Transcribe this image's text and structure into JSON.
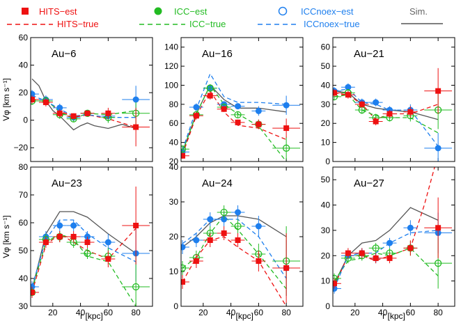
{
  "colors": {
    "hits": "#ee1111",
    "icc": "#22bb22",
    "iccnoex": "#1e7fee",
    "sim": "#555555"
  },
  "legend": [
    {
      "label": "HITS−est",
      "series": "hits",
      "kind": "marker",
      "marker": "square"
    },
    {
      "label": "HITS−true",
      "series": "hits",
      "kind": "dashed"
    },
    {
      "label": "ICC−est",
      "series": "icc",
      "kind": "marker",
      "marker": "filled-circle"
    },
    {
      "label": "ICC−true",
      "series": "icc",
      "kind": "dashed"
    },
    {
      "label": "ICCnoex−est",
      "series": "iccnoex",
      "kind": "marker",
      "marker": "open-circle"
    },
    {
      "label": "ICCnoex−true",
      "series": "iccnoex",
      "kind": "dashed"
    },
    {
      "label": "Sim.",
      "series": "sim",
      "kind": "solid"
    }
  ],
  "chart_data": [
    {
      "type": "line",
      "title": "Au−6",
      "xlim": [
        4,
        92
      ],
      "ylim": [
        -30,
        60
      ],
      "yticks": [
        -20,
        0,
        20,
        40,
        60
      ],
      "xticks": [
        20,
        40,
        60,
        80
      ],
      "ylabel": "Vφ [km s⁻¹]",
      "xlabel": "",
      "sim": {
        "x": [
          5,
          10,
          15,
          20,
          25,
          30,
          35,
          40,
          45,
          50,
          60,
          70,
          80
        ],
        "y": [
          30,
          25,
          14,
          7,
          3,
          -2,
          -7,
          -4,
          -2,
          -4,
          -6,
          -3,
          -6
        ]
      },
      "hits_true": {
        "x": [
          5,
          15,
          25,
          35,
          45,
          60,
          80
        ],
        "y": [
          14,
          14,
          7,
          2,
          4,
          1,
          -5
        ]
      },
      "icc_true": {
        "x": [
          5,
          15,
          25,
          35,
          45,
          60,
          80
        ],
        "y": [
          15,
          15,
          6,
          1,
          5,
          4,
          7
        ]
      },
      "iccnoex_true": {
        "x": [
          5,
          15,
          25,
          35,
          45,
          60,
          80
        ],
        "y": [
          18,
          14,
          8,
          3,
          4,
          2,
          2
        ]
      },
      "hits_est": {
        "x": [
          5,
          15,
          25,
          35,
          45,
          60,
          80
        ],
        "y": [
          15,
          13,
          5,
          3,
          5,
          5,
          -5
        ],
        "err": [
          3,
          3,
          3,
          2,
          2,
          4,
          14
        ]
      },
      "icc_est": {
        "x": [
          5,
          15,
          25,
          35,
          45,
          60,
          80
        ],
        "y": [
          14,
          14,
          4,
          1,
          5,
          2,
          5
        ],
        "err": [
          3,
          3,
          3,
          2,
          2,
          4,
          8
        ]
      },
      "iccnoex_est": {
        "x": [
          5,
          15,
          25,
          35,
          45,
          60,
          80
        ],
        "y": [
          19,
          15,
          9,
          2,
          5,
          3,
          15
        ],
        "err": [
          3,
          3,
          3,
          2,
          2,
          4,
          10
        ]
      }
    },
    {
      "type": "line",
      "title": "Au−16",
      "xlim": [
        4,
        92
      ],
      "ylim": [
        20,
        150
      ],
      "yticks": [
        20,
        40,
        60,
        80,
        100,
        120,
        140
      ],
      "xticks": [
        20,
        40,
        60,
        80
      ],
      "ylabel": "",
      "xlabel": "",
      "sim": {
        "x": [
          5,
          15,
          25,
          35,
          45,
          60,
          80
        ],
        "y": [
          30,
          70,
          100,
          85,
          76,
          76,
          72
        ]
      },
      "hits_true": {
        "x": [
          5,
          15,
          25,
          35,
          45,
          60,
          80
        ],
        "y": [
          27,
          68,
          94,
          72,
          58,
          55,
          43
        ]
      },
      "icc_true": {
        "x": [
          5,
          15,
          25,
          35,
          45,
          60,
          80
        ],
        "y": [
          30,
          70,
          100,
          80,
          70,
          57,
          20
        ]
      },
      "iccnoex_true": {
        "x": [
          5,
          15,
          25,
          35,
          45,
          60,
          80
        ],
        "y": [
          32,
          75,
          112,
          88,
          82,
          82,
          80
        ]
      },
      "hits_est": {
        "x": [
          5,
          15,
          25,
          35,
          45,
          60,
          80
        ],
        "y": [
          26,
          68,
          89,
          75,
          61,
          59,
          55
        ],
        "err": [
          3,
          4,
          4,
          3,
          3,
          5,
          10
        ]
      },
      "icc_est": {
        "x": [
          5,
          15,
          25,
          35,
          45,
          60,
          80
        ],
        "y": [
          33,
          69,
          97,
          77,
          69,
          59,
          34
        ],
        "err": [
          3,
          4,
          4,
          3,
          3,
          5,
          12
        ]
      },
      "iccnoex_est": {
        "x": [
          5,
          15,
          25,
          35,
          45,
          60,
          80
        ],
        "y": [
          30,
          77,
          97,
          80,
          78,
          73,
          79
        ],
        "err": [
          3,
          4,
          4,
          3,
          3,
          5,
          10
        ]
      }
    },
    {
      "type": "line",
      "title": "Au−21",
      "xlim": [
        4,
        92
      ],
      "ylim": [
        0,
        65
      ],
      "yticks": [
        0,
        10,
        20,
        30,
        40,
        50,
        60
      ],
      "xticks": [
        20,
        40,
        60,
        80
      ],
      "ylabel": "",
      "xlabel": "",
      "sim": {
        "x": [
          5,
          15,
          25,
          35,
          45,
          60,
          80
        ],
        "y": [
          37,
          36,
          30,
          28,
          27,
          26,
          22
        ]
      },
      "hits_true": {
        "x": [
          5,
          15,
          25,
          35,
          45,
          60,
          80
        ],
        "y": [
          36,
          35,
          30,
          22,
          25,
          25,
          30
        ]
      },
      "icc_true": {
        "x": [
          5,
          15,
          25,
          35,
          45,
          60,
          80
        ],
        "y": [
          34,
          35,
          27,
          24,
          23,
          23,
          15
        ]
      },
      "iccnoex_true": {
        "x": [
          5,
          15,
          25,
          35,
          45,
          60,
          80
        ],
        "y": [
          37,
          38,
          31,
          30,
          27,
          27,
          8
        ]
      },
      "hits_est": {
        "x": [
          5,
          15,
          25,
          35,
          45,
          60,
          80
        ],
        "y": [
          36,
          35,
          30,
          21,
          25,
          26,
          37
        ],
        "err": [
          2,
          2,
          2,
          2,
          2,
          3,
          12
        ]
      },
      "icc_est": {
        "x": [
          5,
          15,
          25,
          35,
          45,
          60,
          80
        ],
        "y": [
          34,
          36,
          27,
          23,
          23,
          24,
          27
        ],
        "err": [
          2,
          2,
          2,
          2,
          2,
          3,
          10
        ]
      },
      "iccnoex_est": {
        "x": [
          5,
          15,
          25,
          35,
          45,
          60,
          80
        ],
        "y": [
          37,
          39,
          31,
          31,
          27,
          27,
          7
        ],
        "err": [
          2,
          2,
          2,
          2,
          2,
          3,
          8
        ]
      }
    },
    {
      "type": "line",
      "title": "Au−23",
      "xlim": [
        4,
        92
      ],
      "ylim": [
        30,
        80
      ],
      "yticks": [
        30,
        40,
        50,
        60,
        70,
        80
      ],
      "xticks": [
        20,
        40,
        60,
        80
      ],
      "ylabel": "Vφ [km s⁻¹]",
      "xlabel": "r [kpc]",
      "sim": {
        "x": [
          5,
          15,
          25,
          35,
          45,
          60,
          80
        ],
        "y": [
          36,
          56,
          64,
          64,
          62,
          56,
          49
        ]
      },
      "hits_true": {
        "x": [
          5,
          15,
          25,
          35,
          45,
          60,
          80
        ],
        "y": [
          35,
          52,
          56,
          53,
          50,
          47,
          58
        ]
      },
      "icc_true": {
        "x": [
          5,
          15,
          25,
          35,
          45,
          60,
          80
        ],
        "y": [
          36,
          53,
          56,
          54,
          48,
          46,
          30
        ]
      },
      "iccnoex_true": {
        "x": [
          5,
          15,
          25,
          35,
          45,
          60,
          80
        ],
        "y": [
          37,
          54,
          61,
          61,
          56,
          51,
          46
        ]
      },
      "hits_est": {
        "x": [
          5,
          15,
          25,
          35,
          45,
          60,
          80
        ],
        "y": [
          35,
          53,
          55,
          55,
          53,
          47,
          59
        ],
        "err": [
          2,
          2,
          2,
          2,
          2,
          3,
          14
        ]
      },
      "icc_est": {
        "x": [
          5,
          15,
          25,
          35,
          45,
          60,
          80
        ],
        "y": [
          35,
          54,
          55,
          53,
          49,
          48,
          37
        ],
        "err": [
          2,
          2,
          2,
          2,
          2,
          3,
          12
        ]
      },
      "iccnoex_est": {
        "x": [
          5,
          15,
          25,
          35,
          45,
          60,
          80
        ],
        "y": [
          37,
          55,
          59,
          59,
          55,
          53,
          49
        ],
        "err": [
          2,
          2,
          2,
          2,
          2,
          3,
          10
        ]
      }
    },
    {
      "type": "line",
      "title": "Au−24",
      "xlim": [
        4,
        92
      ],
      "ylim": [
        0,
        40
      ],
      "yticks": [
        0,
        10,
        20,
        30,
        40
      ],
      "xticks": [
        20,
        40,
        60,
        80
      ],
      "ylabel": "",
      "xlabel": "r [kpc]",
      "sim": {
        "x": [
          5,
          15,
          25,
          35,
          45,
          60,
          80
        ],
        "y": [
          17,
          20,
          24,
          26,
          26,
          25,
          20
        ]
      },
      "hits_true": {
        "x": [
          5,
          15,
          25,
          35,
          45,
          60,
          80
        ],
        "y": [
          7,
          14,
          19,
          20,
          17,
          13,
          0
        ]
      },
      "icc_true": {
        "x": [
          5,
          15,
          25,
          35,
          45,
          60,
          80
        ],
        "y": [
          11,
          14,
          21,
          26,
          22,
          15,
          5
        ]
      },
      "iccnoex_true": {
        "x": [
          5,
          15,
          25,
          35,
          45,
          60,
          80
        ],
        "y": [
          18,
          21,
          25,
          25,
          25,
          20,
          8
        ]
      },
      "hits_est": {
        "x": [
          5,
          15,
          25,
          35,
          45,
          60,
          80
        ],
        "y": [
          7,
          13,
          19,
          21,
          19,
          13,
          11
        ],
        "err": [
          2,
          2,
          2,
          2,
          2,
          3,
          10
        ]
      },
      "icc_est": {
        "x": [
          5,
          15,
          25,
          35,
          45,
          60,
          80
        ],
        "y": [
          11,
          14,
          21,
          27,
          23,
          15,
          13
        ],
        "err": [
          2,
          2,
          2,
          2,
          2,
          3,
          10
        ]
      },
      "iccnoex_est": {
        "x": [
          5,
          15,
          25,
          35,
          45,
          60,
          80
        ],
        "y": [
          17,
          19,
          25,
          25,
          27,
          23,
          11
        ],
        "err": [
          2,
          2,
          2,
          2,
          2,
          3,
          8
        ]
      }
    },
    {
      "type": "line",
      "title": "Au−27",
      "xlim": [
        4,
        92
      ],
      "ylim": [
        0,
        55
      ],
      "yticks": [
        0,
        10,
        20,
        30,
        40,
        50
      ],
      "xticks": [
        20,
        40,
        60,
        80
      ],
      "ylabel": "",
      "xlabel": "r [kpc]",
      "sim": {
        "x": [
          5,
          15,
          25,
          35,
          45,
          60,
          80
        ],
        "y": [
          9,
          20,
          25,
          26,
          30,
          39,
          34
        ]
      },
      "hits_true": {
        "x": [
          5,
          15,
          25,
          35,
          45,
          60,
          70,
          80
        ],
        "y": [
          8,
          20,
          20,
          18,
          20,
          23,
          40,
          60
        ]
      },
      "icc_true": {
        "x": [
          5,
          15,
          25,
          35,
          45,
          60,
          80
        ],
        "y": [
          10,
          18,
          19,
          21,
          20,
          23,
          12
        ]
      },
      "iccnoex_true": {
        "x": [
          5,
          15,
          25,
          35,
          45,
          60,
          80
        ],
        "y": [
          7,
          20,
          21,
          21,
          25,
          29,
          30
        ]
      },
      "hits_est": {
        "x": [
          5,
          15,
          25,
          35,
          45,
          60,
          80
        ],
        "y": [
          9,
          21,
          21,
          19,
          19,
          23,
          31
        ],
        "err": [
          2,
          2,
          2,
          2,
          2,
          3,
          12
        ]
      },
      "icc_est": {
        "x": [
          5,
          15,
          25,
          35,
          45,
          60,
          80
        ],
        "y": [
          11,
          19,
          20,
          23,
          21,
          23,
          17
        ],
        "err": [
          2,
          2,
          2,
          2,
          2,
          3,
          10
        ]
      },
      "iccnoex_est": {
        "x": [
          5,
          15,
          25,
          35,
          45,
          60,
          80
        ],
        "y": [
          7,
          20,
          21,
          19,
          25,
          31,
          29
        ],
        "err": [
          2,
          2,
          2,
          2,
          2,
          3,
          8
        ]
      }
    }
  ]
}
